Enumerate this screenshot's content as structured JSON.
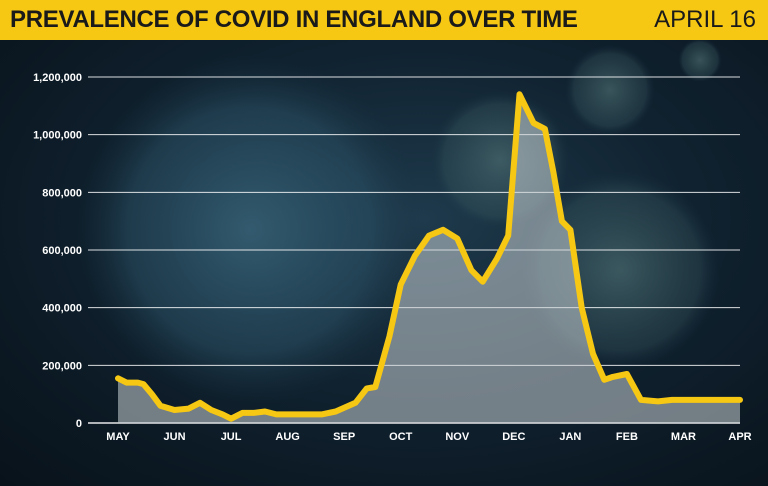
{
  "header": {
    "title": "PREVALENCE OF COVID IN ENGLAND OVER TIME",
    "date": "APRIL 16"
  },
  "colors": {
    "header_bg": "#f6c814",
    "line": "#f6c814",
    "fill": "#c9cfd4",
    "gridline": "#ffffff",
    "text": "#ffffff"
  },
  "chart_data": {
    "type": "area",
    "title": "PREVALENCE OF COVID IN ENGLAND OVER TIME",
    "xlabel": "",
    "ylabel": "",
    "grid": true,
    "ylim": [
      0,
      1200000
    ],
    "yticks": [
      "1,200,000",
      "1,000,000",
      "800,000",
      "600,000",
      "400,000",
      "200,000",
      "0"
    ],
    "ytick_values": [
      1200000,
      1000000,
      800000,
      600000,
      400000,
      200000,
      0
    ],
    "xticks": [
      "MAY",
      "JUN",
      "JUL",
      "AUG",
      "SEP",
      "OCT",
      "NOV",
      "DEC",
      "JAN",
      "FEB",
      "MAR",
      "APR"
    ],
    "xlim": [
      0,
      11
    ],
    "x": [
      0,
      0.15,
      0.35,
      0.45,
      0.6,
      0.75,
      1.0,
      1.25,
      1.45,
      1.65,
      1.85,
      2.0,
      2.2,
      2.4,
      2.6,
      2.8,
      3.0,
      3.3,
      3.6,
      3.85,
      4.2,
      4.4,
      4.55,
      4.8,
      5.0,
      5.25,
      5.5,
      5.75,
      6.0,
      6.25,
      6.45,
      6.7,
      6.9,
      7.1,
      7.35,
      7.55,
      7.7,
      7.85,
      8.0,
      8.2,
      8.4,
      8.6,
      8.75,
      9.0,
      9.25,
      9.55,
      9.8,
      10.0,
      10.2,
      10.45,
      10.75,
      11.0
    ],
    "series": [
      {
        "values": [
          155000,
          140000,
          140000,
          135000,
          100000,
          60000,
          45000,
          50000,
          70000,
          45000,
          30000,
          15000,
          35000,
          35000,
          40000,
          30000,
          30000,
          30000,
          30000,
          40000,
          70000,
          120000,
          125000,
          300000,
          480000,
          580000,
          650000,
          670000,
          640000,
          530000,
          490000,
          570000,
          650000,
          1140000,
          1040000,
          1020000,
          870000,
          700000,
          670000,
          400000,
          240000,
          150000,
          160000,
          170000,
          80000,
          75000,
          80000,
          80000,
          80000,
          80000,
          80000,
          80000
        ]
      }
    ]
  }
}
